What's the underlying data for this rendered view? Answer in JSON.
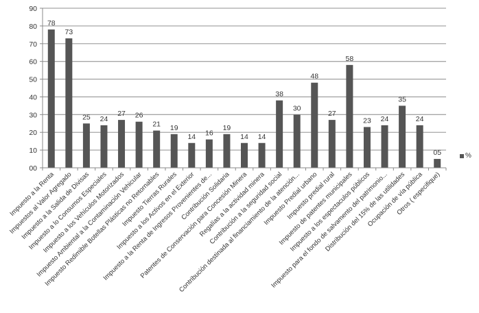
{
  "chart_data": {
    "type": "bar",
    "title": "",
    "xlabel": "",
    "ylabel": "",
    "ylim": [
      0,
      90
    ],
    "yticks": [
      "00",
      "10",
      "20",
      "30",
      "40",
      "50",
      "60",
      "70",
      "80",
      "90"
    ],
    "grid": true,
    "legend_position": "right",
    "categories": [
      "Impuesto a la Renta",
      "Impuestos al Valor Agregado",
      "Impuesto a la Salida de Divisas",
      "Impuesto a lo Consumos Especiales",
      "Impuesto a los Vehículos Motorizados",
      "Impuesto Ambiental a la Contaminación Vehicular",
      "Impuesto Redimible Botellas Plásticas no Retornables",
      "Impuesto Tierras Rurales",
      "Impuesto a los Activos en el Exterior",
      "Impuesto a la Renta de Ingresos Provenientes de...",
      "Contribución Solidaria",
      "Patentes de Conservación para Concesión Minera",
      "Regalías a la actividad minera",
      "Contribución a la seguridad social",
      "Contribución destinada al financiamiento de la atención...",
      "Impuesto Predial urbano",
      "Impuesto predial rural",
      "Impuesto de patentes municipales",
      "Impuesto a  los espectaculos públicos",
      "Impuesto para el fondo de salvamento del patrimonio...",
      "Distribución  del 15% de las utilidades",
      "Ocupación de vía pública",
      "Otros ( especifique)"
    ],
    "series": [
      {
        "name": "%",
        "color": "#555555",
        "values": [
          78,
          73,
          25,
          24,
          27,
          26,
          21,
          19,
          14,
          16,
          19,
          14,
          14,
          38,
          30,
          48,
          27,
          58,
          23,
          24,
          35,
          24,
          5
        ],
        "value_labels": [
          "78",
          "73",
          "25",
          "24",
          "27",
          "26",
          "21",
          "19",
          "14",
          "16",
          "19",
          "14",
          "14",
          "38",
          "30",
          "48",
          "27",
          "58",
          "23",
          "24",
          "35",
          "24",
          "05"
        ]
      }
    ]
  },
  "legend": {
    "label": "%"
  }
}
